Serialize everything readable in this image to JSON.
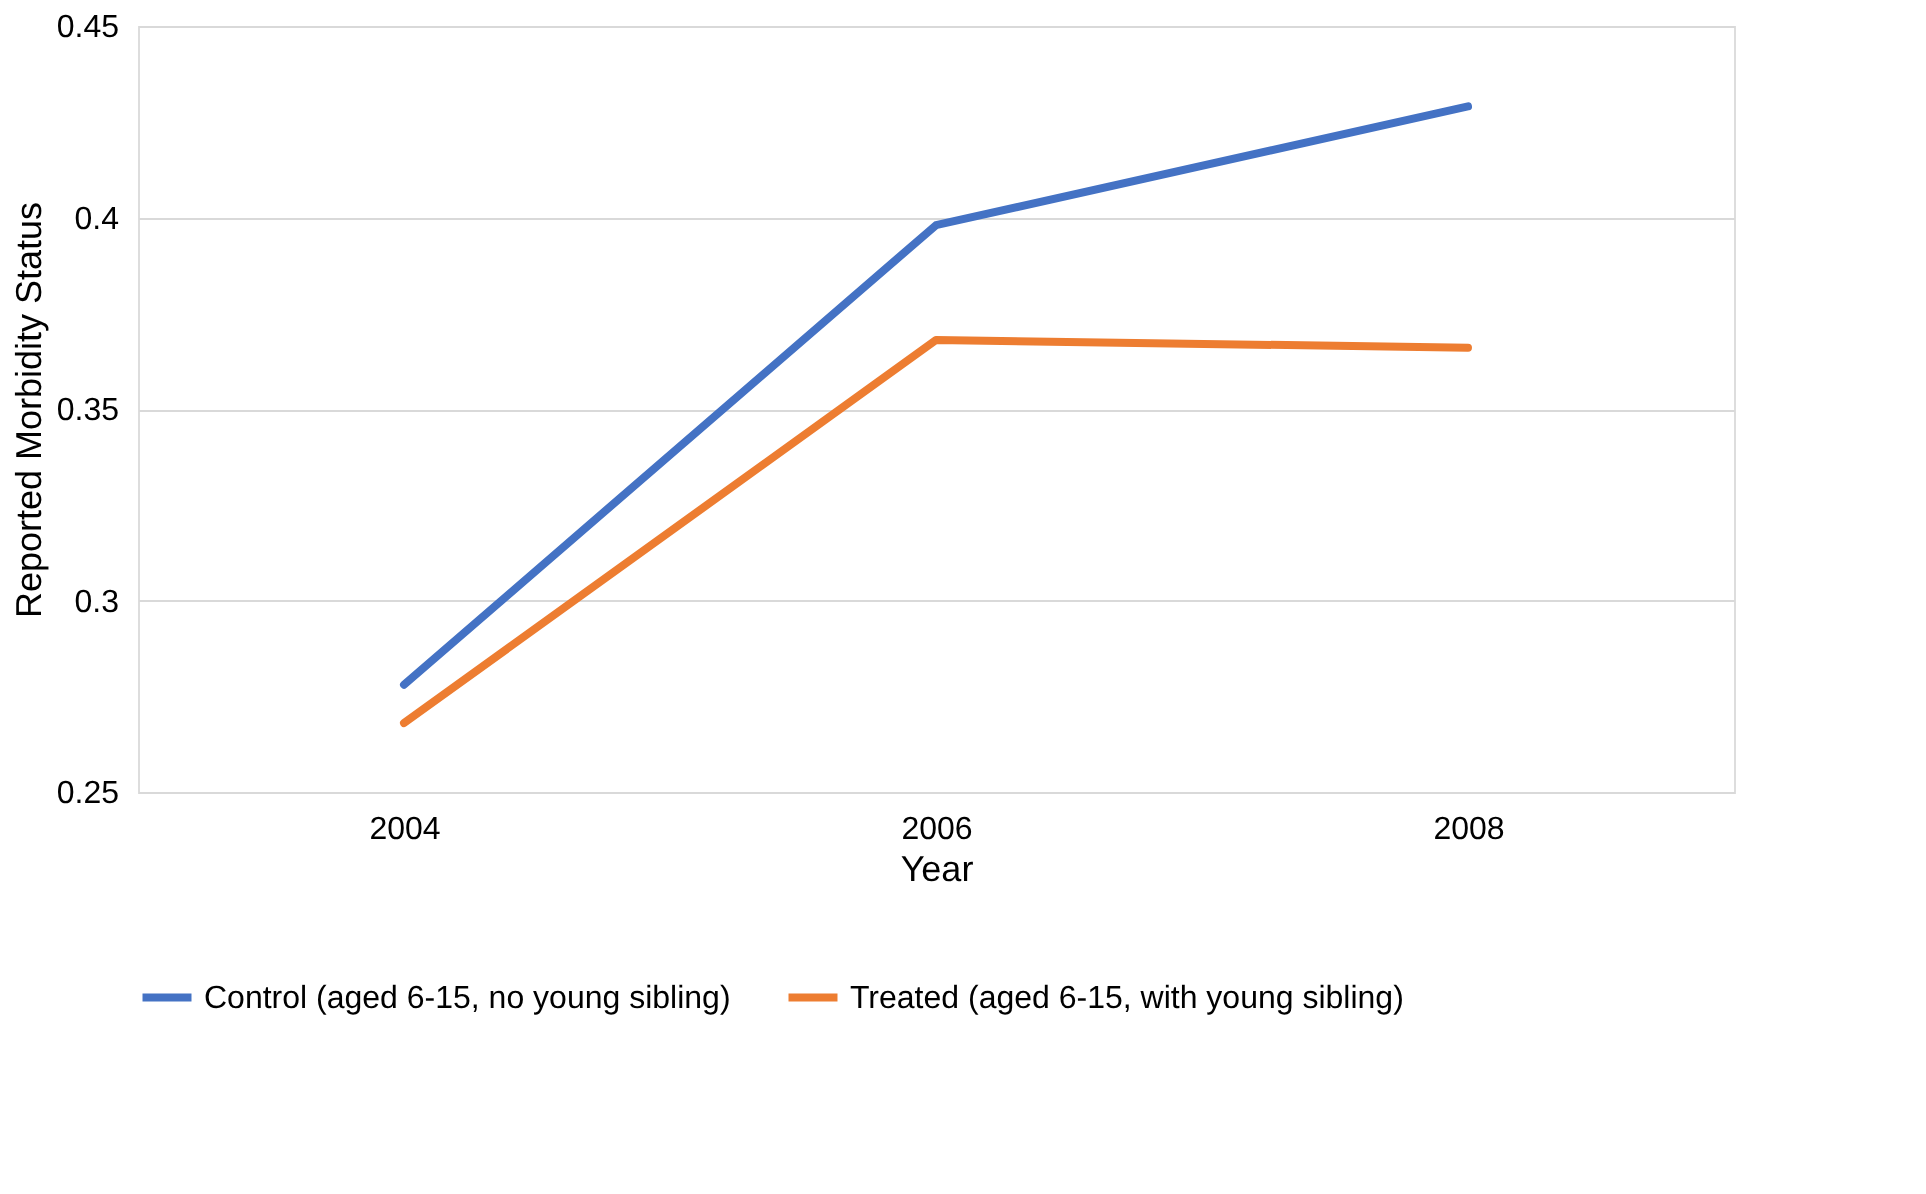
{
  "chart_data": {
    "type": "line",
    "xlabel": "Year",
    "ylabel": "Reported Morbidity Status",
    "categories": [
      "2004",
      "2006",
      "2008"
    ],
    "series": [
      {
        "name": "Control (aged 6-15, no young sibling)",
        "color": "#4472c4",
        "values": [
          0.278,
          0.398,
          0.429
        ]
      },
      {
        "name": "Treated (aged 6-15, with young sibling)",
        "color": "#ed7d31",
        "values": [
          0.268,
          0.368,
          0.366
        ]
      }
    ],
    "ylim": [
      0.25,
      0.45
    ],
    "yticks": [
      0.25,
      0.3,
      0.35,
      0.4,
      0.45
    ],
    "grid": "y",
    "legend": "bottom",
    "marker": "none",
    "line_style": "solid"
  }
}
